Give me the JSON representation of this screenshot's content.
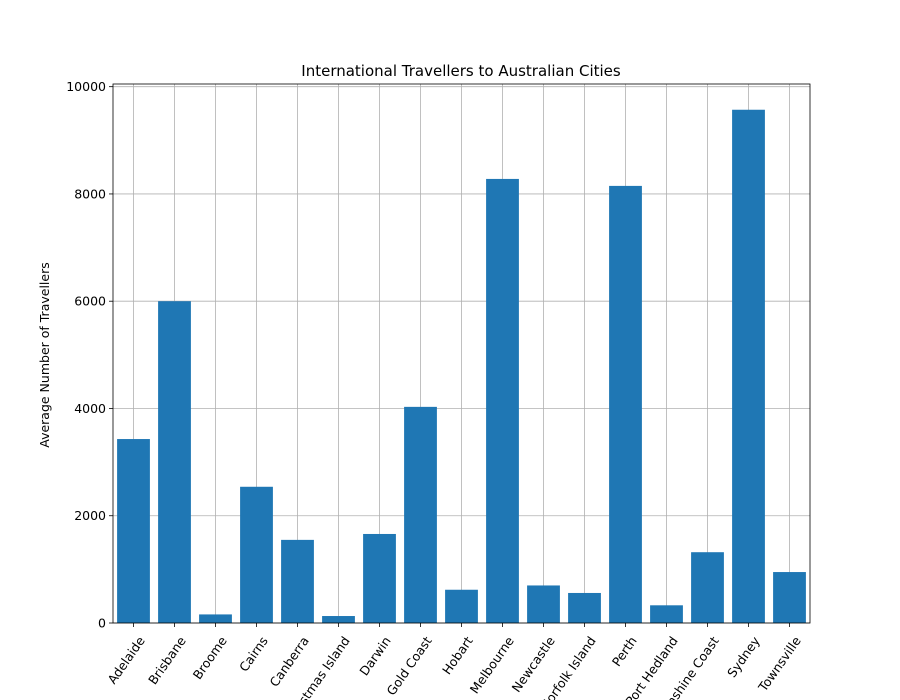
{
  "chart_data": {
    "type": "bar",
    "title": "International Travellers to Australian Cities",
    "xlabel": "",
    "ylabel": "Average Number of Travellers",
    "categories": [
      "Adelaide",
      "Brisbane",
      "Broome",
      "Cairns",
      "Canberra",
      "Christmas Island",
      "Darwin",
      "Gold Coast",
      "Hobart",
      "Melbourne",
      "Newcastle",
      "Norfolk Island",
      "Perth",
      "Port Hedland",
      "Sunshine Coast",
      "Sydney",
      "Townsville"
    ],
    "values": [
      3430,
      6000,
      160,
      2540,
      1550,
      130,
      1660,
      4030,
      620,
      8280,
      700,
      560,
      8150,
      330,
      1320,
      9570,
      950
    ],
    "ylim": [
      0,
      10050
    ],
    "yticks": [
      0,
      2000,
      4000,
      6000,
      8000,
      10000
    ],
    "grid": true,
    "bar_color": "#1f77b4",
    "legend": "none"
  }
}
